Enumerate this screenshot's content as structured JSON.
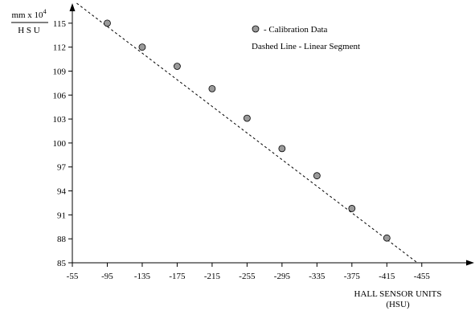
{
  "chart_data": {
    "type": "scatter",
    "title": "",
    "ylabel": {
      "numerator": "mm x 10",
      "exponent": "4",
      "denominator": "H S U"
    },
    "xlabel": {
      "line1": "HALL SENSOR UNITS",
      "line2": "(HSU)"
    },
    "x_ticks": [
      -55,
      -95,
      -135,
      -175,
      -215,
      -255,
      -295,
      -335,
      -375,
      -415,
      -455
    ],
    "y_ticks": [
      85,
      88,
      91,
      94,
      97,
      100,
      103,
      106,
      109,
      112,
      115
    ],
    "xlim": [
      -55,
      -515
    ],
    "ylim": [
      85,
      117.5
    ],
    "grid": false,
    "legend_position": "top-right",
    "legend": {
      "marker_label": "- Calibration Data",
      "line_label": "Dashed Line - Linear Segment"
    },
    "series": [
      {
        "marker": "circle",
        "marker_color": "#9a9a9a",
        "x": [
          -95,
          -135,
          -175,
          -215,
          -255,
          -295,
          -335,
          -375,
          -415
        ],
        "y": [
          115,
          112,
          109.6,
          106.8,
          103.1,
          99.3,
          95.9,
          91.8,
          88.1
        ]
      }
    ],
    "fit_line": {
      "style": "dashed",
      "x": [
        -60,
        -450
      ],
      "y": [
        117.5,
        85
      ]
    }
  }
}
